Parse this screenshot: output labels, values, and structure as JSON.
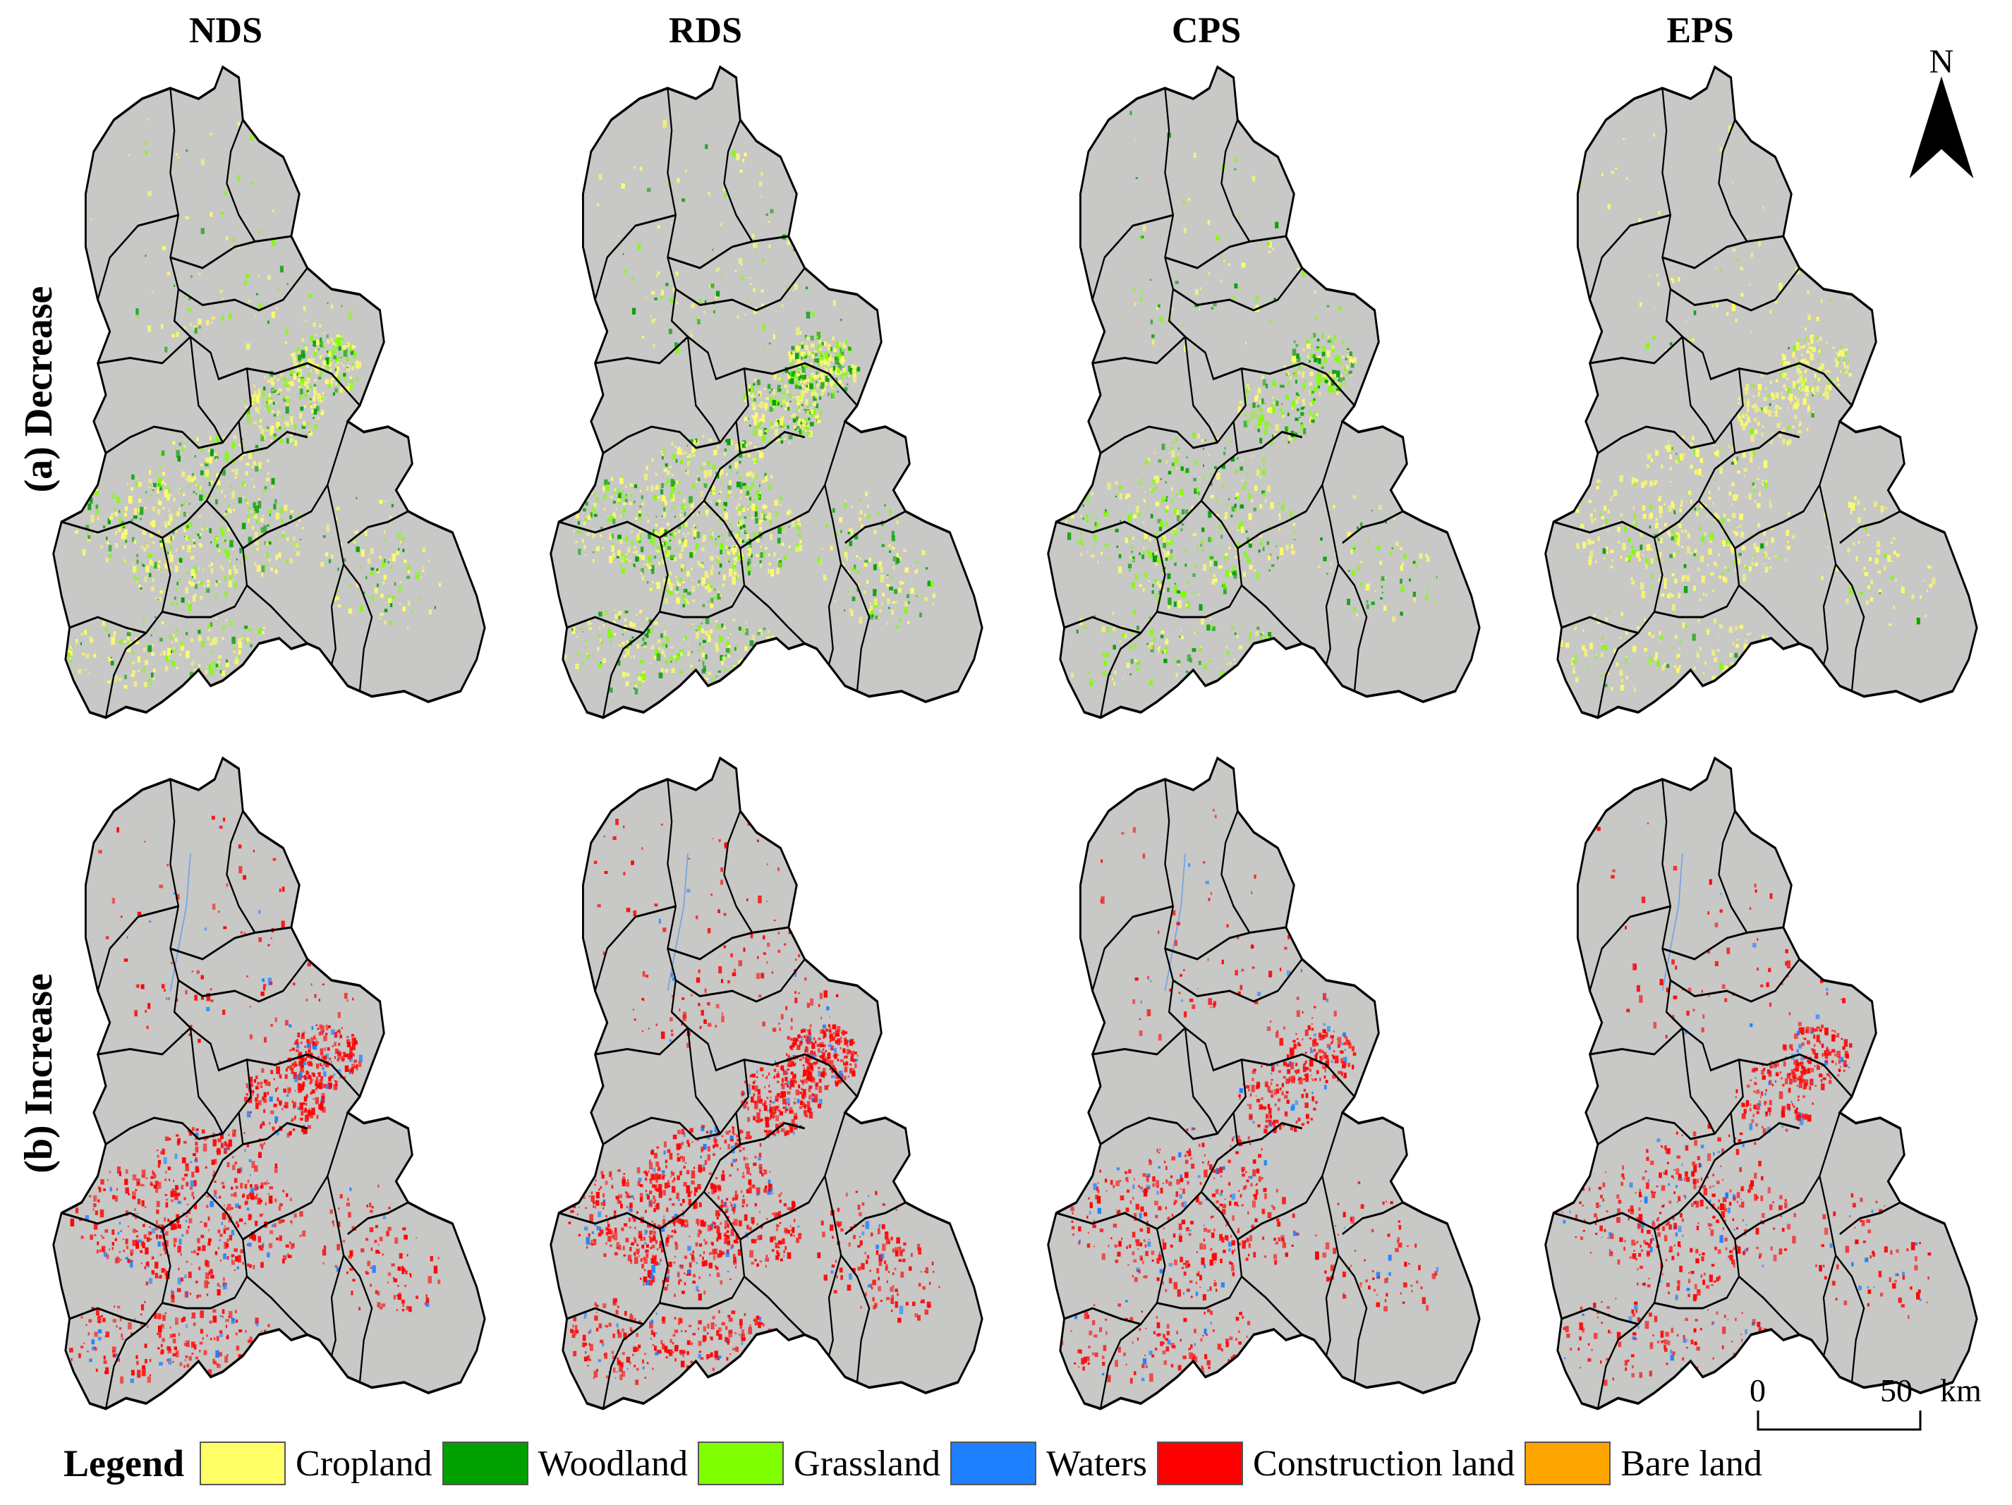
{
  "columns": [
    "NDS",
    "RDS",
    "CPS",
    "EPS"
  ],
  "rows": [
    {
      "label": "(a) Decrease",
      "mode": "decrease"
    },
    {
      "label": "(b) Increase",
      "mode": "increase"
    }
  ],
  "north_arrow": {
    "label": "N"
  },
  "scale_bar": {
    "start": "0",
    "end": "50",
    "unit": "km"
  },
  "legend": {
    "title": "Legend",
    "items": [
      {
        "label": "Cropland",
        "color": "#ffff66"
      },
      {
        "label": "Woodland",
        "color": "#00a000"
      },
      {
        "label": "Grassland",
        "color": "#7fff00"
      },
      {
        "label": "Waters",
        "color": "#1e7fff"
      },
      {
        "label": "Construction land",
        "color": "#ff0000"
      },
      {
        "label": "Bare land",
        "color": "#ffa500"
      }
    ]
  },
  "colors": {
    "basemap": "#c8c8c6",
    "boundary": "#000000"
  }
}
